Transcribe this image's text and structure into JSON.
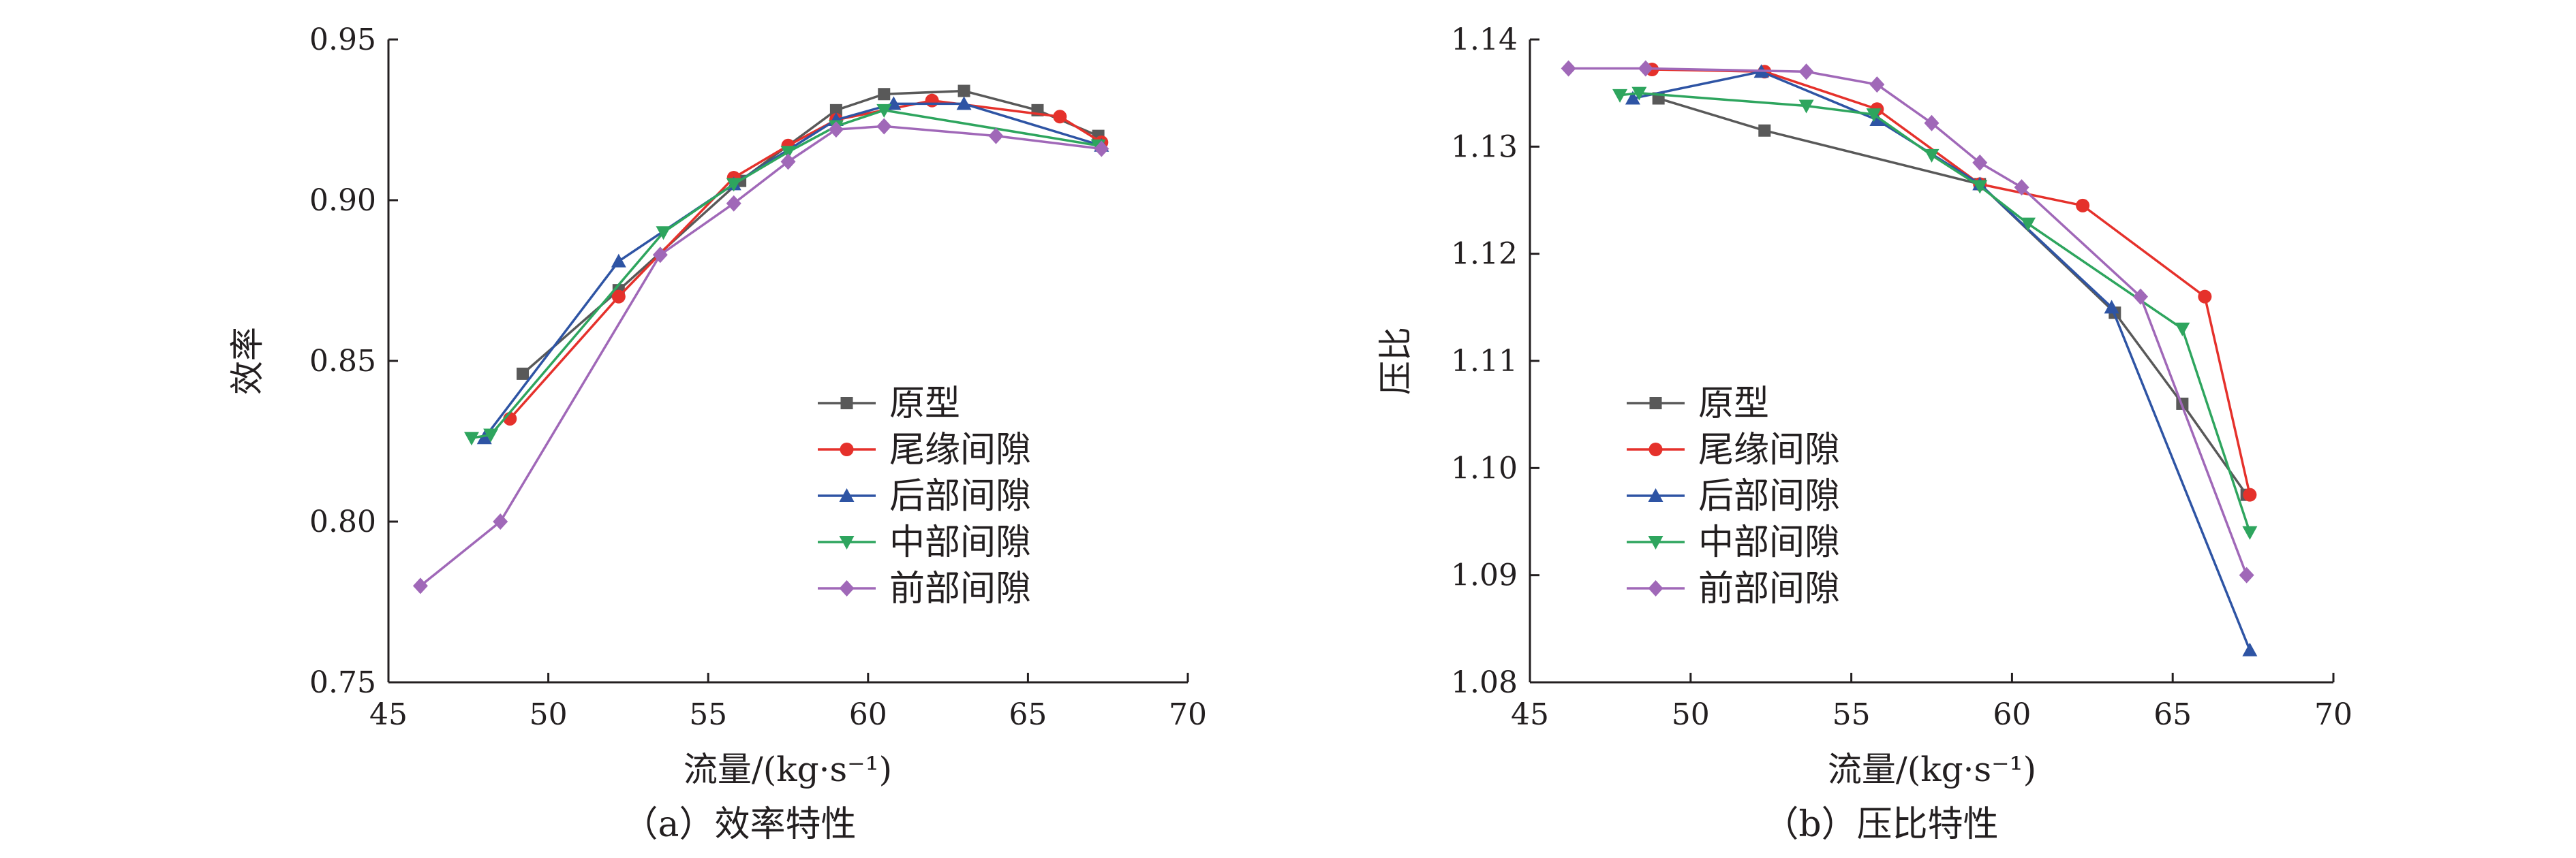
{
  "charts": [
    {
      "caption": "（a）效率特性",
      "chart_data": {
        "type": "line",
        "title": "",
        "xlabel": "流量/(kg·s⁻¹)",
        "ylabel": "效率",
        "xlim": [
          45,
          70
        ],
        "ylim": [
          0.75,
          0.95
        ],
        "x_ticks": [
          "45",
          "50",
          "55",
          "60",
          "65",
          "70"
        ],
        "y_ticks": [
          "0.75",
          "0.80",
          "0.85",
          "0.90",
          "0.95"
        ],
        "grid": false,
        "legend_position": "center-right",
        "series": [
          {
            "name": "原型",
            "color": "#595959",
            "marker": "square",
            "x": [
              49.2,
              52.2,
              56.0,
              59.0,
              60.5,
              63.0,
              65.3,
              67.2
            ],
            "y": [
              0.846,
              0.872,
              0.906,
              0.928,
              0.933,
              0.934,
              0.928,
              0.92
            ]
          },
          {
            "name": "尾缘间隙",
            "color": "#e5312b",
            "marker": "circle",
            "x": [
              48.8,
              52.2,
              55.8,
              57.5,
              59.0,
              62.0,
              66.0,
              67.3
            ],
            "y": [
              0.832,
              0.87,
              0.907,
              0.917,
              0.925,
              0.931,
              0.926,
              0.918
            ]
          },
          {
            "name": "后部间隙",
            "color": "#2e54a4",
            "marker": "triangle-up",
            "x": [
              48.0,
              52.2,
              55.8,
              59.0,
              60.8,
              63.0,
              67.3
            ],
            "y": [
              0.826,
              0.881,
              0.905,
              0.925,
              0.93,
              0.93,
              0.917
            ]
          },
          {
            "name": "中部间隙",
            "color": "#2ea55e",
            "marker": "triangle-down",
            "x": [
              47.6,
              48.2,
              53.6,
              55.8,
              57.5,
              59.0,
              60.5,
              67.2
            ],
            "y": [
              0.826,
              0.827,
              0.89,
              0.905,
              0.915,
              0.923,
              0.928,
              0.917
            ]
          },
          {
            "name": "前部间隙",
            "color": "#a068b8",
            "marker": "diamond",
            "x": [
              46.0,
              48.5,
              53.5,
              55.8,
              57.5,
              59.0,
              60.5,
              64.0,
              67.3
            ],
            "y": [
              0.78,
              0.8,
              0.883,
              0.899,
              0.912,
              0.922,
              0.923,
              0.92,
              0.916
            ]
          }
        ]
      }
    },
    {
      "caption": "（b）压比特性",
      "chart_data": {
        "type": "line",
        "title": "",
        "xlabel": "流量/(kg·s⁻¹)",
        "ylabel": "压比",
        "xlim": [
          45,
          70
        ],
        "ylim": [
          1.08,
          1.14
        ],
        "x_ticks": [
          "45",
          "50",
          "55",
          "60",
          "65",
          "70"
        ],
        "y_ticks": [
          "1.08",
          "1.09",
          "1.10",
          "1.11",
          "1.12",
          "1.13",
          "1.14"
        ],
        "grid": false,
        "legend_position": "lower-center",
        "series": [
          {
            "name": "原型",
            "color": "#595959",
            "marker": "square",
            "x": [
              49.0,
              52.3,
              59.0,
              63.2,
              65.3,
              67.3
            ],
            "y": [
              1.1345,
              1.1315,
              1.1265,
              1.1145,
              1.106,
              1.0975
            ]
          },
          {
            "name": "尾缘间隙",
            "color": "#e5312b",
            "marker": "circle",
            "x": [
              48.8,
              52.3,
              55.8,
              59.0,
              62.2,
              66.0,
              67.4
            ],
            "y": [
              1.1372,
              1.137,
              1.1335,
              1.1265,
              1.1245,
              1.116,
              1.0975
            ]
          },
          {
            "name": "后部间隙",
            "color": "#2e54a4",
            "marker": "triangle-up",
            "x": [
              48.2,
              52.2,
              55.8,
              59.0,
              63.1,
              67.4
            ],
            "y": [
              1.1345,
              1.137,
              1.1325,
              1.1265,
              1.115,
              1.083
            ]
          },
          {
            "name": "中部间隙",
            "color": "#2ea55e",
            "marker": "triangle-down",
            "x": [
              47.8,
              48.4,
              53.6,
              55.7,
              57.5,
              59.0,
              60.5,
              65.3,
              67.4
            ],
            "y": [
              1.1348,
              1.135,
              1.1338,
              1.133,
              1.1292,
              1.1263,
              1.1228,
              1.113,
              1.094
            ]
          },
          {
            "name": "前部间隙",
            "color": "#a068b8",
            "marker": "diamond",
            "x": [
              46.2,
              48.6,
              53.6,
              55.8,
              57.5,
              59.0,
              60.3,
              64.0,
              67.3
            ],
            "y": [
              1.1373,
              1.1373,
              1.137,
              1.1358,
              1.1322,
              1.1285,
              1.1262,
              1.116,
              1.09
            ]
          }
        ]
      }
    }
  ]
}
